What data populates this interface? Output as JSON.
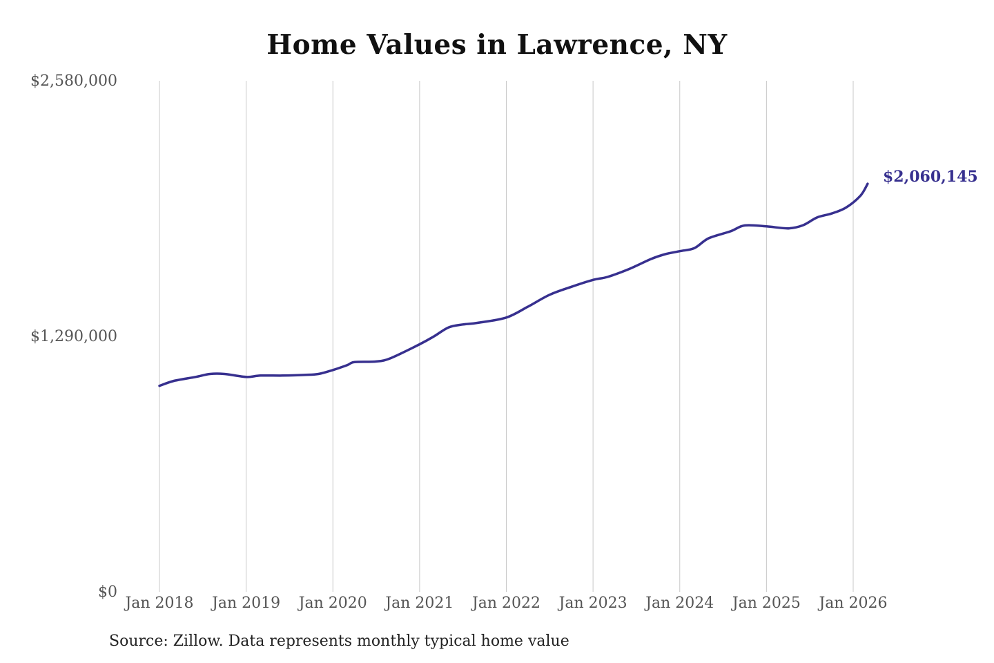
{
  "colors": {
    "line": "#37308f",
    "grid": "#c8c8c8",
    "background": "#ffffff"
  },
  "chart_data": {
    "type": "line",
    "title": "Home Values in Lawrence, NY",
    "xlabel": "",
    "ylabel": "",
    "source": "Source: Zillow. Data represents monthly typical home value",
    "x_ticks": [
      "Jan 2018",
      "Jan 2019",
      "Jan 2020",
      "Jan 2021",
      "Jan 2022",
      "Jan 2023",
      "Jan 2024",
      "Jan 2025",
      "Jan 2026"
    ],
    "y_ticks": [
      {
        "value": 0,
        "label": "$0"
      },
      {
        "value": 1290000,
        "label": "$1,290,000"
      },
      {
        "value": 2580000,
        "label": "$2,580,000"
      }
    ],
    "ylim": [
      0,
      2580000
    ],
    "xlim": [
      "2018-01",
      "2026-01"
    ],
    "grid": "vertical",
    "end_label": "$2,060,145",
    "series": [
      {
        "points": [
          [
            "2018-01",
            1040000
          ],
          [
            "2018-03",
            1065000
          ],
          [
            "2018-06",
            1085000
          ],
          [
            "2018-08",
            1100000
          ],
          [
            "2018-10",
            1100000
          ],
          [
            "2019-01",
            1085000
          ],
          [
            "2019-03",
            1092000
          ],
          [
            "2019-06",
            1092000
          ],
          [
            "2019-09",
            1095000
          ],
          [
            "2019-11",
            1100000
          ],
          [
            "2020-01",
            1120000
          ],
          [
            "2020-03",
            1145000
          ],
          [
            "2020-04",
            1160000
          ],
          [
            "2020-07",
            1163000
          ],
          [
            "2020-09",
            1180000
          ],
          [
            "2021-01",
            1250000
          ],
          [
            "2021-03",
            1290000
          ],
          [
            "2021-05",
            1335000
          ],
          [
            "2021-07",
            1350000
          ],
          [
            "2021-09",
            1358000
          ],
          [
            "2022-01",
            1385000
          ],
          [
            "2022-04",
            1440000
          ],
          [
            "2022-07",
            1500000
          ],
          [
            "2022-10",
            1540000
          ],
          [
            "2023-01",
            1575000
          ],
          [
            "2023-03",
            1590000
          ],
          [
            "2023-06",
            1630000
          ],
          [
            "2023-09",
            1680000
          ],
          [
            "2023-11",
            1705000
          ],
          [
            "2024-01",
            1720000
          ],
          [
            "2024-03",
            1735000
          ],
          [
            "2024-05",
            1785000
          ],
          [
            "2024-08",
            1820000
          ],
          [
            "2024-10",
            1850000
          ],
          [
            "2025-01",
            1845000
          ],
          [
            "2025-04",
            1835000
          ],
          [
            "2025-06",
            1850000
          ],
          [
            "2025-08",
            1890000
          ],
          [
            "2025-10",
            1910000
          ],
          [
            "2025-12",
            1940000
          ],
          [
            "2026-02",
            2000000
          ],
          [
            "2026-03",
            2060145
          ]
        ]
      }
    ]
  }
}
